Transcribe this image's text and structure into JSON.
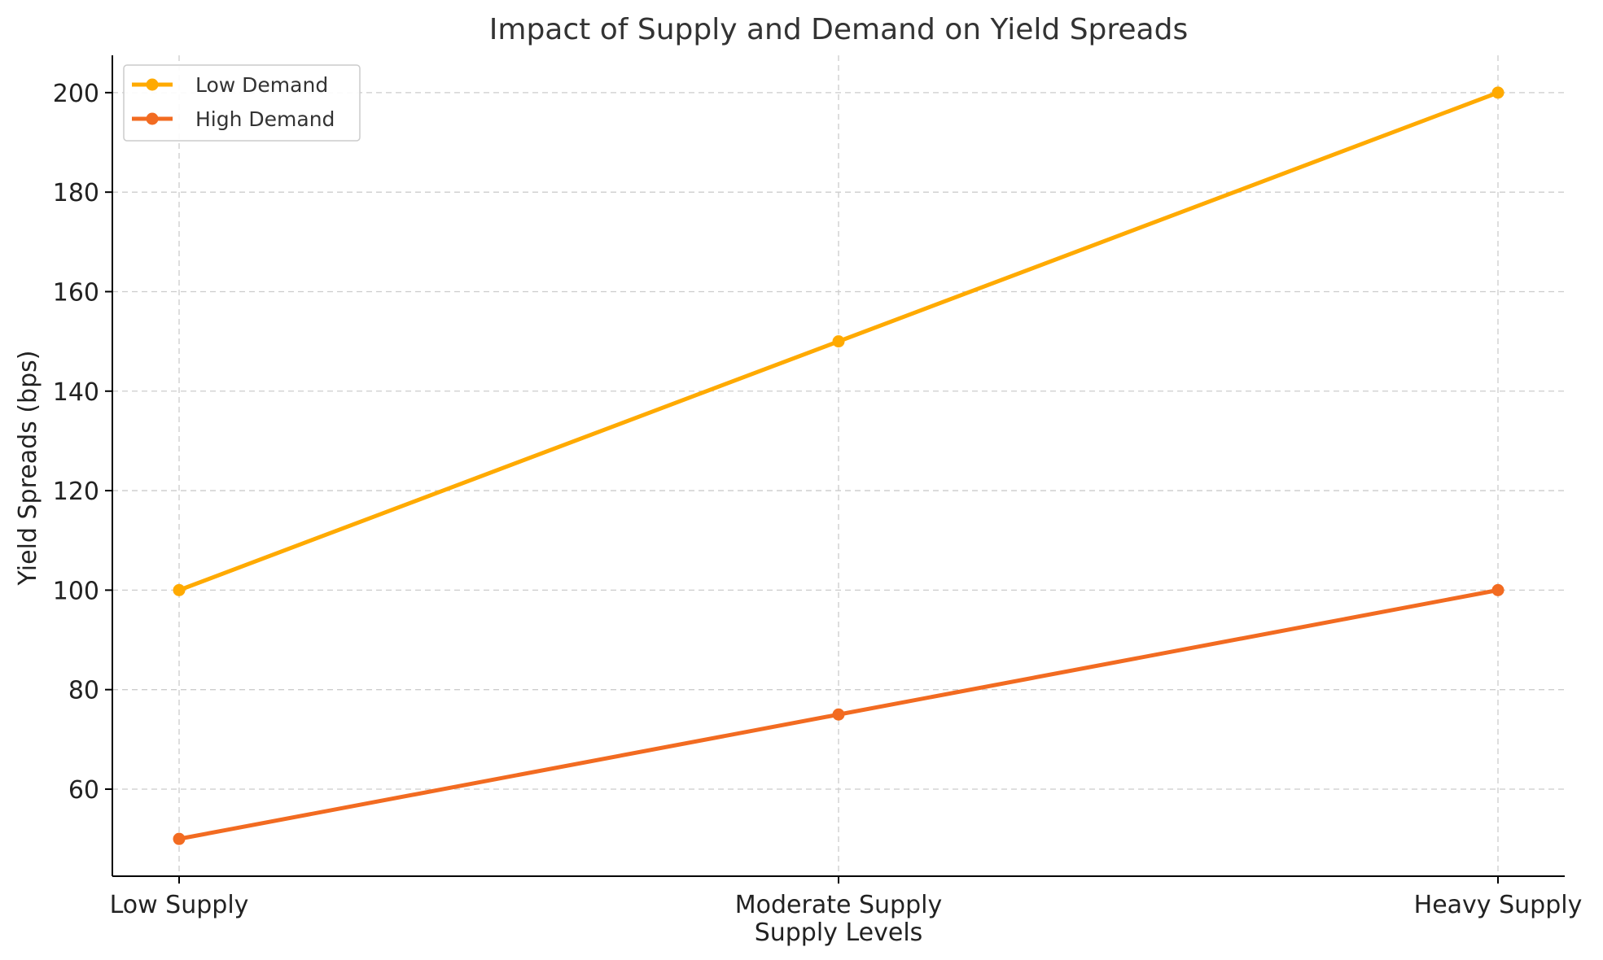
{
  "chart_data": {
    "type": "line",
    "title": "Impact of Supply and Demand on Yield Spreads",
    "xlabel": "Supply Levels",
    "ylabel": "Yield Spreads (bps)",
    "categories": [
      "Low Supply",
      "Moderate Supply",
      "Heavy Supply"
    ],
    "yticks": [
      60,
      80,
      100,
      120,
      140,
      160,
      180,
      200
    ],
    "ylim": [
      42.5,
      207.5
    ],
    "grid": true,
    "legend_position": "top-left",
    "series": [
      {
        "name": "Low Demand",
        "values": [
          100,
          150,
          200
        ],
        "color": "#FFAA00",
        "marker": "circle"
      },
      {
        "name": "High Demand",
        "values": [
          50,
          75,
          100
        ],
        "color": "#F26B21",
        "marker": "circle"
      }
    ]
  }
}
